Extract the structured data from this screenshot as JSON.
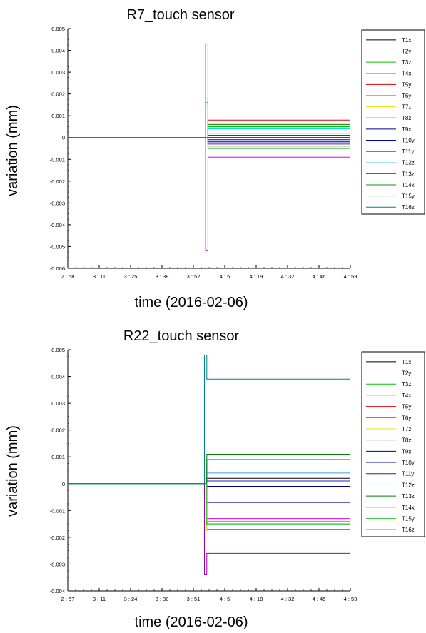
{
  "chart_data": [
    {
      "type": "line",
      "title": "R7_touch sensor",
      "xlabel": "time (2016-02-06)",
      "ylabel": "variation (mm)",
      "ylim": [
        -0.006,
        0.005
      ],
      "xlim": [
        "2:58",
        "4:59"
      ],
      "x_ticks": [
        "2 : 58",
        "3 : 11",
        "3 : 25",
        "3 : 38",
        "3 : 52",
        "4 : 5",
        "4 : 19",
        "4 : 32",
        "4 : 46",
        "4 : 59"
      ],
      "y_ticks": [
        "0.005",
        "0.004",
        "0.003",
        "0.002",
        "0.001",
        "0",
        "-0.001",
        "-0.002",
        "-0.003",
        "-0.004",
        "-0.005",
        "-0.006"
      ],
      "legend_position": "right",
      "series": [
        {
          "name": "T1x",
          "color": "#000000",
          "x": [
            "2:58",
            "3:56",
            "3:58",
            "4:59"
          ],
          "y": [
            0.0,
            0.0,
            0.0001,
            0.0001
          ]
        },
        {
          "name": "T2y",
          "color": "#0000a0",
          "x": [
            "2:58",
            "3:56",
            "3:58",
            "4:59"
          ],
          "y": [
            0.0,
            0.0,
            -0.0002,
            -0.0002
          ]
        },
        {
          "name": "T3z",
          "color": "#00c000",
          "x": [
            "2:58",
            "3:56",
            "3:57",
            "3:58",
            "4:59"
          ],
          "y": [
            0.0,
            0.0,
            0.0016,
            0.0005,
            0.0005
          ]
        },
        {
          "name": "T4x",
          "color": "#00e0e0",
          "x": [
            "2:58",
            "3:56",
            "3:58",
            "4:59"
          ],
          "y": [
            0.0,
            0.0,
            0.0004,
            0.0004
          ]
        },
        {
          "name": "T5y",
          "color": "#e00000",
          "x": [
            "2:58",
            "3:56",
            "3:58",
            "4:59"
          ],
          "y": [
            0.0,
            0.0,
            0.0008,
            0.0008
          ]
        },
        {
          "name": "T6y",
          "color": "#e000e0",
          "x": [
            "2:58",
            "3:56",
            "3:57",
            "3:58",
            "4:59"
          ],
          "y": [
            0.0,
            0.0,
            -0.0052,
            -0.0009,
            -0.0009
          ]
        },
        {
          "name": "T7z",
          "color": "#f0e000",
          "x": [
            "2:58",
            "3:56",
            "3:58",
            "4:59"
          ],
          "y": [
            0.0,
            0.0,
            0.0002,
            0.0002
          ]
        },
        {
          "name": "T8z",
          "color": "#a000a0",
          "x": [
            "2:58",
            "3:56",
            "3:58",
            "4:59"
          ],
          "y": [
            0.0,
            0.0,
            -0.0003,
            -0.0003
          ]
        },
        {
          "name": "T9x",
          "color": "#000080",
          "x": [
            "2:58",
            "3:56",
            "3:58",
            "4:59"
          ],
          "y": [
            0.0,
            0.0,
            0.0,
            0.0
          ]
        },
        {
          "name": "T10y",
          "color": "#0000c0",
          "x": [
            "2:58",
            "3:56",
            "3:58",
            "4:59"
          ],
          "y": [
            0.0,
            0.0,
            -0.0001,
            -0.0001
          ]
        },
        {
          "name": "T11y",
          "color": "#2020c0",
          "x": [
            "2:58",
            "3:56",
            "3:58",
            "4:59"
          ],
          "y": [
            0.0,
            0.0,
            -0.0002,
            -0.0002
          ]
        },
        {
          "name": "T12z",
          "color": "#80d8ff",
          "x": [
            "2:58",
            "3:56",
            "3:57",
            "3:58",
            "4:59"
          ],
          "y": [
            0.0,
            0.0,
            0.0018,
            0.0003,
            0.0003
          ]
        },
        {
          "name": "T13z",
          "color": "#008000",
          "x": [
            "2:58",
            "3:56",
            "3:58",
            "4:59"
          ],
          "y": [
            0.0,
            0.0,
            0.0006,
            0.0006
          ]
        },
        {
          "name": "T14x",
          "color": "#00a000",
          "x": [
            "2:58",
            "3:56",
            "3:58",
            "4:59"
          ],
          "y": [
            0.0,
            0.0,
            -0.0005,
            -0.0005
          ]
        },
        {
          "name": "T15y",
          "color": "#40d040",
          "x": [
            "2:58",
            "3:56",
            "3:58",
            "4:59"
          ],
          "y": [
            0.0,
            0.0,
            -0.0004,
            -0.0004
          ]
        },
        {
          "name": "T16z",
          "color": "#008080",
          "x": [
            "2:58",
            "3:56",
            "3:57",
            "3:58",
            "4:59"
          ],
          "y": [
            0.0,
            0.0,
            0.0043,
            0.0002,
            0.0002
          ]
        }
      ]
    },
    {
      "type": "line",
      "title": "R22_touch sensor",
      "xlabel": "time (2016-02-06)",
      "ylabel": "variation (mm)",
      "ylim": [
        -0.004,
        0.005
      ],
      "xlim": [
        "2:57",
        "4:59"
      ],
      "x_ticks": [
        "2 : 57",
        "3 : 11",
        "3 : 24",
        "3 : 38",
        "3 : 51",
        "4 : 5",
        "4 : 18",
        "4 : 32",
        "4 : 45",
        "4 : 59"
      ],
      "y_ticks": [
        "0.005",
        "0.004",
        "0.003",
        "0.002",
        "0.001",
        "0",
        "-0.001",
        "-0.002",
        "-0.003",
        "-0.004"
      ],
      "legend_position": "right",
      "series": [
        {
          "name": "T1x",
          "color": "#000000",
          "x": [
            "2:57",
            "3:55",
            "3:57",
            "4:59"
          ],
          "y": [
            0.0,
            0.0,
            0.0002,
            0.0002
          ]
        },
        {
          "name": "T2y",
          "color": "#0000a0",
          "x": [
            "2:57",
            "3:55",
            "3:57",
            "4:59"
          ],
          "y": [
            0.0,
            0.0,
            -0.0007,
            -0.0007
          ]
        },
        {
          "name": "T3z",
          "color": "#00c000",
          "x": [
            "2:57",
            "3:55",
            "3:57",
            "4:59"
          ],
          "y": [
            0.0,
            0.0,
            -0.0017,
            -0.0017
          ]
        },
        {
          "name": "T4x",
          "color": "#00e0e0",
          "x": [
            "2:57",
            "3:55",
            "3:57",
            "4:59"
          ],
          "y": [
            0.0,
            0.0,
            0.0007,
            0.0007
          ]
        },
        {
          "name": "T5y",
          "color": "#e00000",
          "x": [
            "2:57",
            "3:55",
            "3:57",
            "4:59"
          ],
          "y": [
            0.0,
            0.0,
            0.0009,
            0.0009
          ]
        },
        {
          "name": "T6y",
          "color": "#e000e0",
          "x": [
            "2:57",
            "3:55",
            "3:57",
            "4:59"
          ],
          "y": [
            0.0,
            0.0,
            -0.0013,
            -0.0013
          ]
        },
        {
          "name": "T7z",
          "color": "#f0e000",
          "x": [
            "2:57",
            "3:55",
            "3:57",
            "4:59"
          ],
          "y": [
            0.0,
            0.0,
            -0.0018,
            -0.0018
          ]
        },
        {
          "name": "T8z",
          "color": "#a000a0",
          "x": [
            "2:57",
            "3:55",
            "3:56",
            "3:57",
            "4:59"
          ],
          "y": [
            0.0,
            0.0,
            -0.0034,
            -0.0026,
            -0.0026
          ]
        },
        {
          "name": "T9x",
          "color": "#000080",
          "x": [
            "2:57",
            "3:55",
            "3:57",
            "4:59"
          ],
          "y": [
            0.0,
            0.0,
            -0.0001,
            -0.0001
          ]
        },
        {
          "name": "T10y",
          "color": "#0000c0",
          "x": [
            "2:57",
            "3:55",
            "3:57",
            "4:59"
          ],
          "y": [
            0.0,
            0.0,
            0.0004,
            0.0004
          ]
        },
        {
          "name": "T11y",
          "color": "#2020c0",
          "x": [
            "2:57",
            "3:55",
            "3:57",
            "4:59"
          ],
          "y": [
            0.0,
            0.0,
            0.0001,
            0.0001
          ]
        },
        {
          "name": "T12z",
          "color": "#80d8ff",
          "x": [
            "2:57",
            "3:55",
            "3:57",
            "4:59"
          ],
          "y": [
            0.0,
            0.0,
            0.0004,
            0.0004
          ]
        },
        {
          "name": "T13z",
          "color": "#008000",
          "x": [
            "2:57",
            "3:55",
            "3:57",
            "4:59"
          ],
          "y": [
            0.0,
            0.0,
            0.0011,
            0.0011
          ]
        },
        {
          "name": "T14x",
          "color": "#00a000",
          "x": [
            "2:57",
            "3:55",
            "3:57",
            "4:59"
          ],
          "y": [
            0.0,
            0.0,
            -0.0015,
            -0.0015
          ]
        },
        {
          "name": "T15y",
          "color": "#40d040",
          "x": [
            "2:57",
            "3:55",
            "3:57",
            "4:59"
          ],
          "y": [
            0.0,
            0.0,
            -0.0014,
            -0.0014
          ]
        },
        {
          "name": "T16z",
          "color": "#008080",
          "x": [
            "2:57",
            "3:55",
            "3:56",
            "3:57",
            "4:59"
          ],
          "y": [
            0.0,
            0.0,
            0.0048,
            0.0039,
            0.0039
          ]
        }
      ]
    }
  ]
}
